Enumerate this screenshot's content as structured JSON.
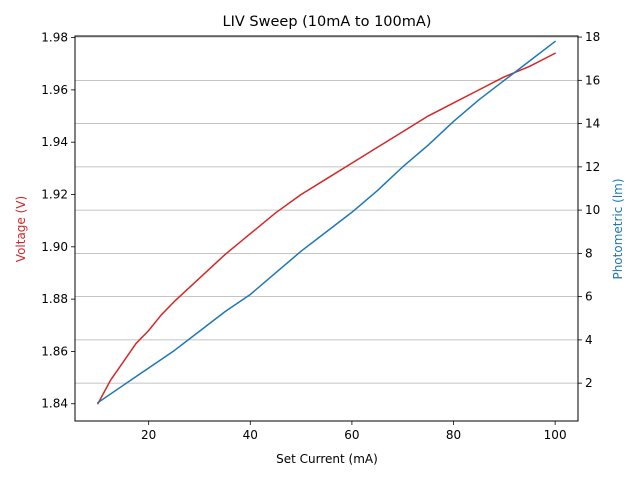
{
  "chart_data": {
    "type": "line",
    "title": "LIV Sweep (10mA to 100mA)",
    "xlabel": "Set Current (mA)",
    "xlim": [
      5.5,
      104.5
    ],
    "xticks": [
      20,
      40,
      60,
      80,
      100
    ],
    "grid": "horizontal lines on right axis",
    "left_axis": {
      "label": "Voltage (V)",
      "color": "#d62728",
      "ylim": [
        1.8334,
        1.9806
      ],
      "ticks": [
        "1.84",
        "1.86",
        "1.88",
        "1.90",
        "1.92",
        "1.94",
        "1.96",
        "1.98"
      ],
      "tick_values": [
        1.84,
        1.86,
        1.88,
        1.9,
        1.92,
        1.94,
        1.96,
        1.98
      ]
    },
    "right_axis": {
      "label": "Photometric (lm)",
      "color": "#1f77b4",
      "ylim": [
        0.25,
        18.05
      ],
      "ticks": [
        "2",
        "4",
        "6",
        "8",
        "10",
        "12",
        "14",
        "16",
        "18"
      ],
      "tick_values": [
        2,
        4,
        6,
        8,
        10,
        12,
        14,
        16,
        18
      ]
    },
    "series": [
      {
        "axis": "left",
        "color": "#d62728",
        "x": [
          10,
          12.5,
          15,
          17.5,
          20,
          22.5,
          25,
          30,
          35,
          40,
          45,
          50,
          55,
          60,
          65,
          70,
          75,
          80,
          85,
          90,
          95,
          100
        ],
        "values": [
          1.84,
          1.849,
          1.856,
          1.863,
          1.868,
          1.874,
          1.879,
          1.888,
          1.897,
          1.905,
          1.913,
          1.92,
          1.926,
          1.932,
          1.938,
          1.944,
          1.95,
          1.955,
          1.96,
          1.965,
          1.969,
          1.974
        ]
      },
      {
        "axis": "right",
        "color": "#1f77b4",
        "x": [
          10,
          15,
          20,
          25,
          30,
          35,
          40,
          45,
          50,
          55,
          60,
          65,
          70,
          75,
          80,
          85,
          90,
          95,
          100
        ],
        "values": [
          1.1,
          1.9,
          2.7,
          3.5,
          4.4,
          5.3,
          6.1,
          7.1,
          8.1,
          9.0,
          9.9,
          10.9,
          12.0,
          13.0,
          14.1,
          15.1,
          16.0,
          16.9,
          17.8
        ]
      }
    ],
    "ticks_x_labels": [
      "20",
      "40",
      "60",
      "80",
      "100"
    ]
  }
}
